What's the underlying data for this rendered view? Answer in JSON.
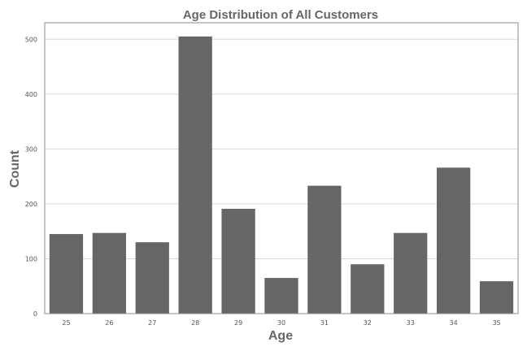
{
  "chart_data": {
    "type": "bar",
    "title": "Age Distribution of All Customers",
    "xlabel": "Age",
    "ylabel": "Count",
    "categories": [
      "25",
      "26",
      "27",
      "28",
      "29",
      "30",
      "31",
      "32",
      "33",
      "34",
      "35"
    ],
    "values": [
      145,
      147,
      130,
      505,
      191,
      65,
      233,
      90,
      147,
      266,
      59
    ],
    "ylim": [
      0,
      530
    ],
    "yticks": [
      0,
      100,
      200,
      300,
      400,
      500
    ],
    "grid": true,
    "bar_color": "#666666",
    "legend": null
  }
}
